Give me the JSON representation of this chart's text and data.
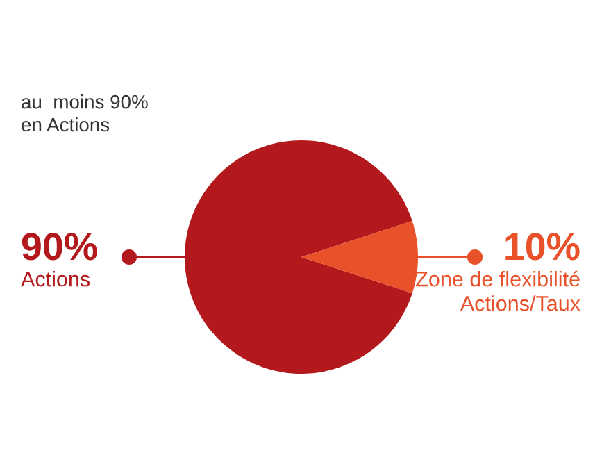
{
  "chart_data": {
    "type": "pie",
    "subtitle": "au  moins 90%\nen Actions",
    "categories": [
      "Actions",
      "Zone de flexibilité\nActions/Taux"
    ],
    "values": [
      90,
      10
    ],
    "colors": [
      "#b3191c",
      "#e8512a"
    ],
    "value_labels": [
      "90%",
      "10%"
    ]
  }
}
